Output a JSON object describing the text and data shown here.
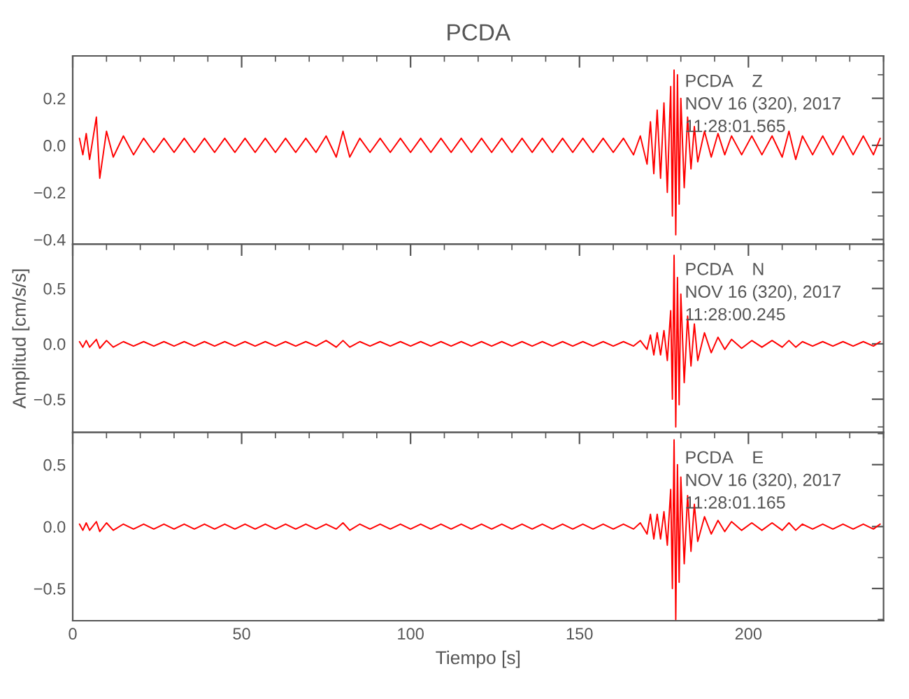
{
  "chart_data": [
    {
      "type": "line",
      "title": "PCDA",
      "annotations": [
        "PCDA    Z",
        "NOV 16 (320), 2017",
        "11:28:01.565"
      ],
      "tick_labels": "y",
      "grid": false,
      "xlim": [
        0,
        240
      ],
      "xticks": [
        0,
        50,
        100,
        150,
        200
      ],
      "ylim": [
        -0.42,
        0.38
      ],
      "yticks": [
        {
          "value": 0.2,
          "label": "0.2"
        },
        {
          "value": 0.0,
          "label": "0.0"
        },
        {
          "value": -0.2,
          "label": "−0.2"
        },
        {
          "value": -0.4,
          "label": "−0.4"
        }
      ],
      "series": [
        {
          "color": "#ff0000",
          "x": [
            2,
            3,
            4,
            5,
            7,
            8,
            10,
            12,
            15,
            18,
            21,
            24,
            27,
            30,
            33,
            36,
            39,
            42,
            45,
            48,
            51,
            54,
            57,
            60,
            63,
            66,
            69,
            72,
            75,
            78,
            80,
            82,
            85,
            88,
            91,
            94,
            97,
            100,
            103,
            106,
            109,
            112,
            115,
            118,
            121,
            124,
            127,
            130,
            133,
            136,
            139,
            142,
            145,
            148,
            151,
            154,
            157,
            160,
            163,
            166,
            168,
            170,
            171,
            172,
            173,
            174,
            175,
            176,
            177,
            177.5,
            178,
            178.5,
            179,
            179.5,
            180,
            181,
            182,
            183,
            184,
            185,
            187,
            189,
            191,
            193,
            195,
            198,
            201,
            204,
            207,
            210,
            212,
            214,
            216,
            219,
            222,
            225,
            228,
            231,
            234,
            237,
            239
          ],
          "values": [
            0.03,
            -0.04,
            0.05,
            -0.06,
            0.12,
            -0.14,
            0.06,
            -0.05,
            0.04,
            -0.04,
            0.03,
            -0.03,
            0.03,
            -0.03,
            0.03,
            -0.03,
            0.03,
            -0.03,
            0.03,
            -0.03,
            0.03,
            -0.03,
            0.03,
            -0.03,
            0.03,
            -0.03,
            0.03,
            -0.03,
            0.04,
            -0.05,
            0.06,
            -0.05,
            0.03,
            -0.03,
            0.03,
            -0.03,
            0.03,
            -0.03,
            0.03,
            -0.03,
            0.03,
            -0.03,
            0.03,
            -0.03,
            0.03,
            -0.03,
            0.03,
            -0.03,
            0.03,
            -0.03,
            0.03,
            -0.03,
            0.03,
            -0.03,
            0.03,
            -0.03,
            0.03,
            -0.03,
            0.03,
            -0.04,
            0.04,
            -0.08,
            0.1,
            -0.12,
            0.15,
            -0.14,
            0.18,
            -0.2,
            0.25,
            -0.3,
            0.32,
            -0.38,
            0.3,
            -0.25,
            0.2,
            -0.18,
            0.12,
            -0.1,
            0.08,
            -0.07,
            0.06,
            -0.05,
            0.05,
            -0.04,
            0.04,
            -0.04,
            0.04,
            -0.04,
            0.04,
            -0.05,
            0.06,
            -0.06,
            0.04,
            -0.04,
            0.04,
            -0.04,
            0.04,
            -0.04,
            0.04,
            -0.04,
            0.03
          ]
        }
      ]
    },
    {
      "type": "line",
      "ylabel": "Amplitud [cm/s/s]",
      "annotations": [
        "PCDA    N",
        "NOV 16 (320), 2017",
        "11:28:00.245"
      ],
      "tick_labels": "y",
      "grid": false,
      "xlim": [
        0,
        240
      ],
      "xticks": [
        0,
        50,
        100,
        150,
        200
      ],
      "ylim": [
        -0.8,
        0.9
      ],
      "yticks": [
        {
          "value": 0.5,
          "label": "0.5"
        },
        {
          "value": 0.0,
          "label": "0.0"
        },
        {
          "value": -0.5,
          "label": "−0.5"
        }
      ],
      "series": [
        {
          "color": "#ff0000",
          "x": [
            2,
            3,
            4,
            5,
            7,
            8,
            10,
            12,
            15,
            18,
            21,
            24,
            27,
            30,
            33,
            36,
            39,
            42,
            45,
            48,
            51,
            54,
            57,
            60,
            63,
            66,
            69,
            72,
            75,
            78,
            80,
            82,
            85,
            88,
            91,
            94,
            97,
            100,
            103,
            106,
            109,
            112,
            115,
            118,
            121,
            124,
            127,
            130,
            133,
            136,
            139,
            142,
            145,
            148,
            151,
            154,
            157,
            160,
            163,
            166,
            168,
            170,
            171,
            172,
            173,
            174,
            175,
            176,
            177,
            177.5,
            178,
            178.5,
            179,
            179.5,
            180,
            181,
            182,
            183,
            184,
            185,
            187,
            189,
            191,
            193,
            195,
            198,
            201,
            204,
            207,
            210,
            212,
            214,
            216,
            219,
            222,
            225,
            228,
            231,
            234,
            237,
            239
          ],
          "values": [
            0.02,
            -0.03,
            0.03,
            -0.03,
            0.04,
            -0.04,
            0.03,
            -0.03,
            0.02,
            -0.02,
            0.02,
            -0.02,
            0.02,
            -0.02,
            0.02,
            -0.02,
            0.02,
            -0.02,
            0.02,
            -0.02,
            0.02,
            -0.02,
            0.02,
            -0.02,
            0.02,
            -0.02,
            0.02,
            -0.02,
            0.03,
            -0.03,
            0.03,
            -0.03,
            0.02,
            -0.02,
            0.02,
            -0.02,
            0.02,
            -0.02,
            0.02,
            -0.02,
            0.02,
            -0.02,
            0.02,
            -0.02,
            0.02,
            -0.02,
            0.02,
            -0.02,
            0.02,
            -0.02,
            0.02,
            -0.02,
            0.02,
            -0.02,
            0.02,
            -0.02,
            0.02,
            -0.02,
            0.02,
            -0.02,
            0.03,
            -0.05,
            0.08,
            -0.1,
            0.1,
            -0.1,
            0.12,
            -0.15,
            0.3,
            -0.5,
            0.8,
            -0.75,
            0.6,
            -0.55,
            0.45,
            -0.35,
            0.25,
            -0.2,
            0.18,
            -0.15,
            0.1,
            -0.08,
            0.06,
            -0.05,
            0.04,
            -0.04,
            0.03,
            -0.03,
            0.03,
            -0.03,
            0.03,
            -0.03,
            0.02,
            -0.02,
            0.02,
            -0.02,
            0.02,
            -0.02,
            0.02,
            -0.02,
            0.02
          ]
        }
      ]
    },
    {
      "type": "line",
      "xlabel": "Tiempo [s]",
      "annotations": [
        "PCDA    E",
        "NOV 16 (320), 2017",
        "11:28:01.165"
      ],
      "grid": false,
      "xlim": [
        0,
        240
      ],
      "xticks": [
        0,
        50,
        100,
        150,
        200
      ],
      "ylim": [
        -0.76,
        0.76
      ],
      "yticks": [
        {
          "value": 0.5,
          "label": "0.5"
        },
        {
          "value": 0.0,
          "label": "0.0"
        },
        {
          "value": -0.5,
          "label": "−0.5"
        }
      ],
      "series": [
        {
          "color": "#ff0000",
          "x": [
            2,
            3,
            4,
            5,
            7,
            8,
            10,
            12,
            15,
            18,
            21,
            24,
            27,
            30,
            33,
            36,
            39,
            42,
            45,
            48,
            51,
            54,
            57,
            60,
            63,
            66,
            69,
            72,
            75,
            78,
            80,
            82,
            85,
            88,
            91,
            94,
            97,
            100,
            103,
            106,
            109,
            112,
            115,
            118,
            121,
            124,
            127,
            130,
            133,
            136,
            139,
            142,
            145,
            148,
            151,
            154,
            157,
            160,
            163,
            166,
            168,
            170,
            171,
            172,
            173,
            174,
            175,
            176,
            177,
            177.5,
            178,
            178.5,
            179,
            179.5,
            180,
            181,
            182,
            183,
            184,
            185,
            187,
            189,
            191,
            193,
            195,
            198,
            201,
            204,
            207,
            210,
            212,
            214,
            216,
            219,
            222,
            225,
            228,
            231,
            234,
            237,
            239
          ],
          "values": [
            0.02,
            -0.03,
            0.03,
            -0.03,
            0.04,
            -0.04,
            0.03,
            -0.03,
            0.02,
            -0.02,
            0.02,
            -0.02,
            0.02,
            -0.02,
            0.02,
            -0.02,
            0.02,
            -0.02,
            0.02,
            -0.02,
            0.02,
            -0.02,
            0.02,
            -0.02,
            0.02,
            -0.02,
            0.02,
            -0.02,
            0.02,
            -0.02,
            0.03,
            -0.03,
            0.02,
            -0.02,
            0.02,
            -0.02,
            0.02,
            -0.02,
            0.02,
            -0.02,
            0.02,
            -0.02,
            0.02,
            -0.02,
            0.02,
            -0.02,
            0.02,
            -0.02,
            0.02,
            -0.02,
            0.02,
            -0.02,
            0.02,
            -0.02,
            0.02,
            -0.02,
            0.02,
            -0.02,
            0.02,
            -0.02,
            0.03,
            -0.06,
            0.1,
            -0.1,
            0.1,
            -0.1,
            0.12,
            -0.15,
            0.3,
            -0.5,
            0.7,
            -0.75,
            0.5,
            -0.45,
            0.4,
            -0.3,
            0.25,
            -0.2,
            0.18,
            -0.12,
            0.08,
            -0.06,
            0.05,
            -0.04,
            0.04,
            -0.03,
            0.03,
            -0.03,
            0.03,
            -0.03,
            0.03,
            -0.03,
            0.02,
            -0.02,
            0.02,
            -0.02,
            0.02,
            -0.02,
            0.02,
            -0.02,
            0.02
          ]
        }
      ]
    }
  ]
}
